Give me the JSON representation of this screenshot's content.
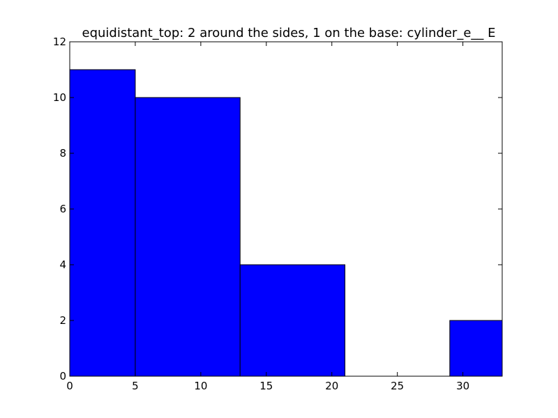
{
  "chart_data": {
    "type": "bar",
    "title": "equidistant_top: 2 around the sides, 1 on the base: cylinder_e__ E",
    "xlabel": "",
    "ylabel": "",
    "xlim": [
      0,
      33
    ],
    "ylim": [
      0,
      12
    ],
    "x_ticks": [
      0,
      5,
      10,
      15,
      20,
      25,
      30
    ],
    "y_ticks": [
      0,
      2,
      4,
      6,
      8,
      10,
      12
    ],
    "bins": [
      {
        "x0": 0,
        "x1": 5,
        "value": 11
      },
      {
        "x0": 5,
        "x1": 13,
        "value": 10
      },
      {
        "x0": 13,
        "x1": 21,
        "value": 4
      },
      {
        "x0": 21,
        "x1": 29,
        "value": 0
      },
      {
        "x0": 29,
        "x1": 33,
        "value": 2
      }
    ],
    "bar_color": "#0000ff",
    "grid": false,
    "legend": "none"
  }
}
